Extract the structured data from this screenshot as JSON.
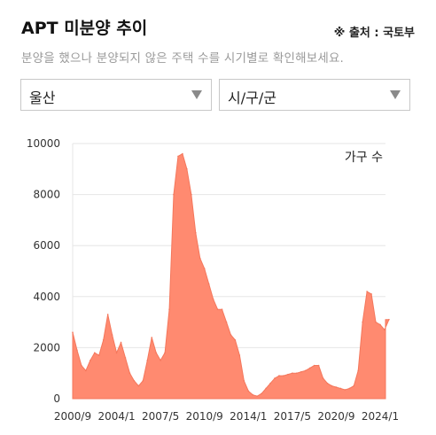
{
  "header": {
    "title": "APT 미분양 추이",
    "source": "※ 출처 : 국토부",
    "subtitle": "분양을 했으나 분양되지 않은 주택 수를 시기별로 확인해보세요."
  },
  "filters": {
    "region": "울산",
    "district": "시/구/군"
  },
  "colors": {
    "fill": "#ff8a70",
    "stroke": "#f4775c",
    "grid": "#e6e6e6"
  },
  "chart_data": {
    "type": "area",
    "title": "",
    "legend": "가구 수",
    "legend_position": "top-right",
    "xlabel": "",
    "ylabel": "",
    "ylim": [
      0,
      10000
    ],
    "yticks": [
      0,
      2000,
      4000,
      6000,
      8000,
      10000
    ],
    "xticks": [
      "2000/9",
      "2004/1",
      "2007/5",
      "2010/9",
      "2014/1",
      "2017/5",
      "2020/9",
      "2024/1"
    ],
    "grid": true,
    "x": [
      "2000/9",
      "2001/1",
      "2001/5",
      "2001/9",
      "2002/1",
      "2002/5",
      "2002/9",
      "2003/1",
      "2003/5",
      "2003/9",
      "2004/1",
      "2004/5",
      "2004/9",
      "2005/1",
      "2005/5",
      "2005/9",
      "2006/1",
      "2006/5",
      "2006/9",
      "2007/1",
      "2007/5",
      "2007/9",
      "2008/1",
      "2008/5",
      "2008/9",
      "2009/1",
      "2009/5",
      "2009/9",
      "2010/1",
      "2010/5",
      "2010/9",
      "2011/1",
      "2011/5",
      "2011/9",
      "2012/1",
      "2012/5",
      "2012/9",
      "2013/1",
      "2013/5",
      "2013/9",
      "2014/1",
      "2014/5",
      "2014/9",
      "2015/1",
      "2015/5",
      "2015/9",
      "2016/1",
      "2016/5",
      "2016/9",
      "2017/1",
      "2017/5",
      "2017/9",
      "2018/1",
      "2018/5",
      "2018/9",
      "2019/1",
      "2019/5",
      "2019/9",
      "2020/1",
      "2020/5",
      "2020/9",
      "2021/1",
      "2021/5",
      "2021/9",
      "2022/1",
      "2022/5",
      "2022/9",
      "2023/1",
      "2023/5",
      "2023/9",
      "2024/1",
      "2024/5",
      "2024/9"
    ],
    "values": [
      2600,
      1900,
      1300,
      1100,
      1500,
      1800,
      1700,
      2300,
      3300,
      2500,
      1800,
      2200,
      1600,
      1000,
      700,
      500,
      700,
      1500,
      2400,
      1800,
      1500,
      1800,
      3500,
      8000,
      9500,
      9600,
      9000,
      8000,
      6500,
      5500,
      5100,
      4500,
      3900,
      3500,
      3500,
      3000,
      2500,
      2300,
      1700,
      700,
      300,
      150,
      100,
      200,
      400,
      600,
      800,
      900,
      900,
      950,
      1000,
      1000,
      1050,
      1100,
      1200,
      1300,
      1300,
      800,
      600,
      500,
      450,
      400,
      350,
      400,
      500,
      1100,
      3000,
      4200,
      4100,
      3000,
      2900,
      2700,
      3100
    ]
  }
}
